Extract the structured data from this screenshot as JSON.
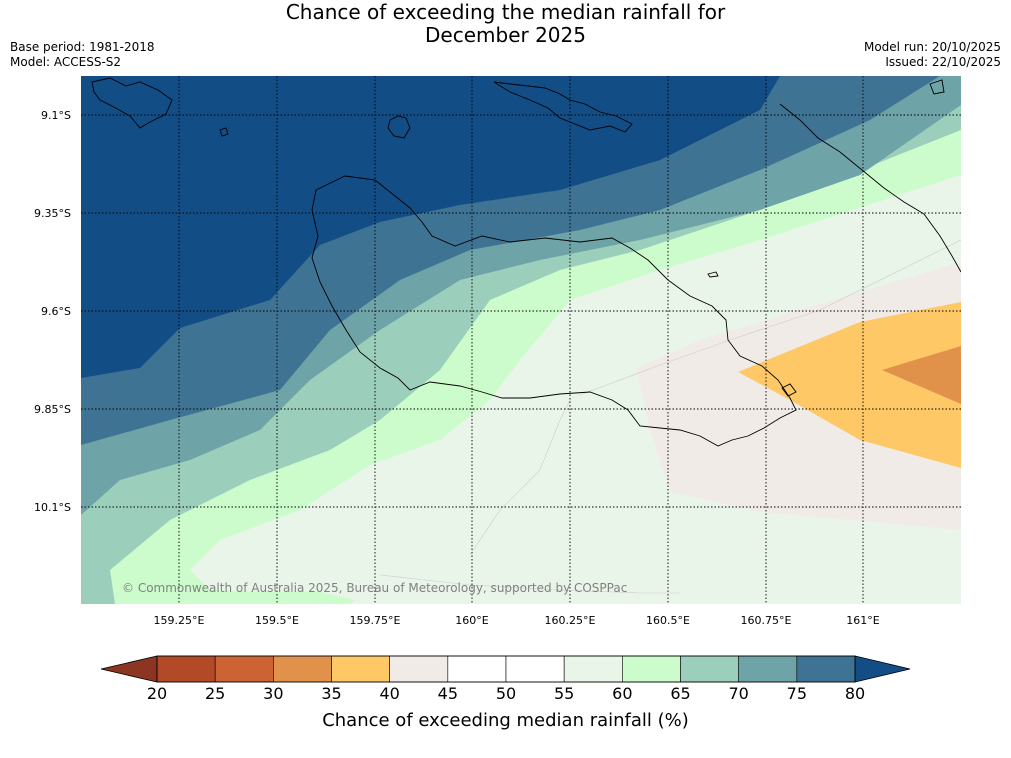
{
  "title": {
    "line1": "Chance of exceeding the median rainfall for",
    "line2": "December 2025"
  },
  "meta": {
    "base_period": "Base period: 1981-2018",
    "model": "Model: ACCESS-S2",
    "model_run": "Model run: 20/10/2025",
    "issued": "Issued: 22/10/2025"
  },
  "map": {
    "lat_labels": [
      "9.1°S",
      "9.35°S",
      "9.6°S",
      "9.85°S",
      "10.1°S"
    ],
    "lon_labels": [
      "159.25°E",
      "159.5°E",
      "159.75°E",
      "160°E",
      "160.25°E",
      "160.5°E",
      "160.75°E",
      "161°E"
    ],
    "copyright": "© Commonwealth of Australia 2025, Bureau of Meteorology, supported by COSPPac"
  },
  "colorbar": {
    "ticks": [
      "20",
      "25",
      "30",
      "35",
      "40",
      "45",
      "50",
      "55",
      "60",
      "65",
      "70",
      "75",
      "80"
    ],
    "colors": [
      "#b34a27",
      "#cc6334",
      "#e0914a",
      "#fdc865",
      "#f0ebe6",
      "#ffffff",
      "#ffffff",
      "#eaf5ea",
      "#ccfccc",
      "#9ccfbb",
      "#6ea3a7",
      "#3f7394"
    ],
    "under_color": "#8c3522",
    "over_color": "#134d86",
    "label": "Chance of exceeding median rainfall (%)"
  }
}
